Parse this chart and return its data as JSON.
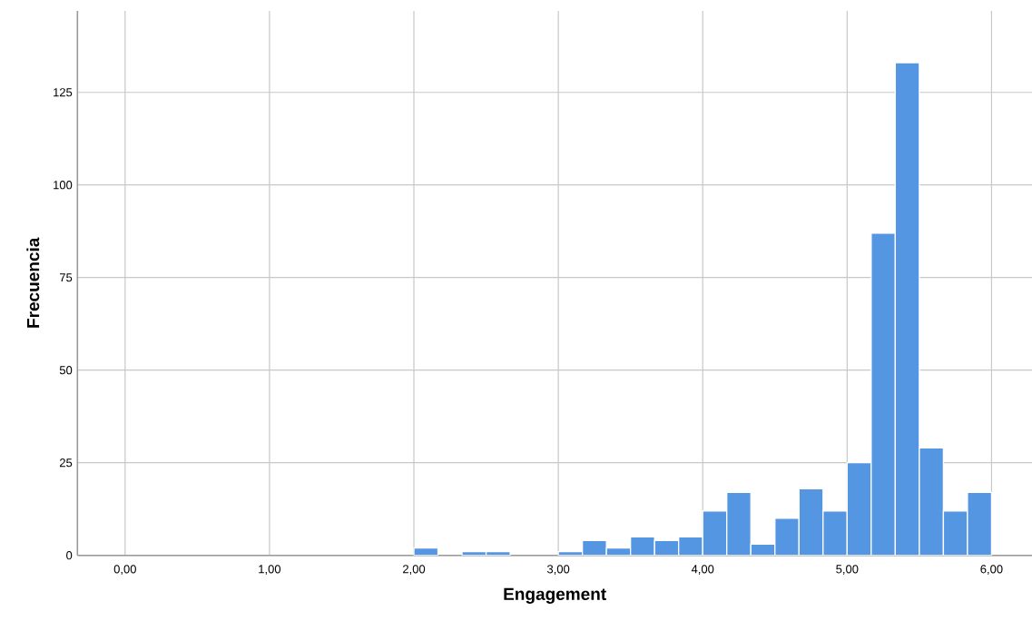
{
  "chart_data": {
    "type": "histogram",
    "xlabel": "Engagement",
    "ylabel": "Frecuencia",
    "bins": [
      2,
      2.1667,
      2.3333,
      2.5,
      2.6667,
      2.8333,
      3,
      3.1667,
      3.3333,
      3.5,
      3.6667,
      3.8333,
      4,
      4.1667,
      4.3333,
      4.5,
      4.6667,
      4.8333,
      5,
      5.1667,
      5.3333,
      5.5,
      5.6667,
      5.8333,
      6
    ],
    "values": [
      2,
      0,
      1,
      1,
      0,
      0,
      1,
      4,
      2,
      5,
      4,
      5,
      12,
      17,
      3,
      10,
      18,
      12,
      25,
      87,
      133,
      29,
      12,
      17
    ],
    "color": "#5596e3",
    "xlim": [
      -0.33,
      6.28
    ],
    "ylim": [
      0,
      147
    ],
    "xticks": [
      {
        "value": 0,
        "label": "0,00"
      },
      {
        "value": 1,
        "label": "1,00"
      },
      {
        "value": 2,
        "label": "2,00"
      },
      {
        "value": 3,
        "label": "3,00"
      },
      {
        "value": 4,
        "label": "4,00"
      },
      {
        "value": 5,
        "label": "5,00"
      },
      {
        "value": 6,
        "label": "6,00"
      }
    ],
    "yticks": [
      0,
      25,
      50,
      75,
      100,
      125
    ],
    "grid": true
  }
}
